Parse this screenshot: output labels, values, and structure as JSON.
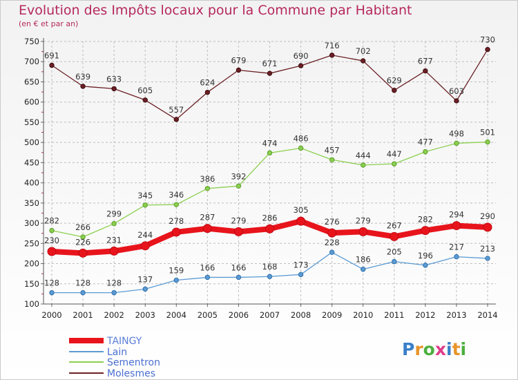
{
  "title": "Evolution des Impôts locaux pour la Commune par Habitant",
  "subtitle": "(en € et par an)",
  "logo": {
    "text": "Proxiti",
    "letter_colors": [
      "#3a7fc8",
      "#e8942a",
      "#4caf3e",
      "#e03c8a",
      "#3a7fc8",
      "#e8942a",
      "#4caf3e"
    ]
  },
  "chart_data": {
    "type": "line",
    "title": "Evolution des Impôts locaux pour la Commune par Habitant",
    "subtitle": "(en € et par an)",
    "xlabel": "",
    "ylabel": "",
    "x": [
      "2000",
      "2001",
      "2002",
      "2003",
      "2004",
      "2005",
      "2006",
      "2007",
      "2008",
      "2009",
      "2010",
      "2011",
      "2012",
      "2013",
      "2014"
    ],
    "ylim": [
      100,
      750
    ],
    "yticks": [
      "100",
      "150",
      "200",
      "250",
      "300",
      "350",
      "400",
      "450",
      "500",
      "550",
      "600",
      "650",
      "700",
      "750"
    ],
    "grid": true,
    "legend_position": "bottom-left",
    "series": [
      {
        "name": "TAINGY",
        "color": "#e8141c",
        "emphasis": true,
        "values": [
          230,
          226,
          231,
          244,
          278,
          287,
          279,
          286,
          305,
          276,
          279,
          267,
          282,
          294,
          290
        ]
      },
      {
        "name": "Lain",
        "color": "#5b9bd5",
        "values": [
          128,
          128,
          128,
          137,
          159,
          166,
          166,
          168,
          173,
          228,
          186,
          205,
          196,
          217,
          213
        ]
      },
      {
        "name": "Sementron",
        "color": "#8ccf4f",
        "values": [
          282,
          266,
          299,
          345,
          346,
          386,
          392,
          474,
          486,
          457,
          444,
          447,
          477,
          498,
          501
        ]
      },
      {
        "name": "Molesmes",
        "color": "#6b1f24",
        "values": [
          691,
          639,
          633,
          605,
          557,
          624,
          679,
          671,
          690,
          716,
          702,
          629,
          677,
          603,
          730
        ]
      }
    ]
  }
}
